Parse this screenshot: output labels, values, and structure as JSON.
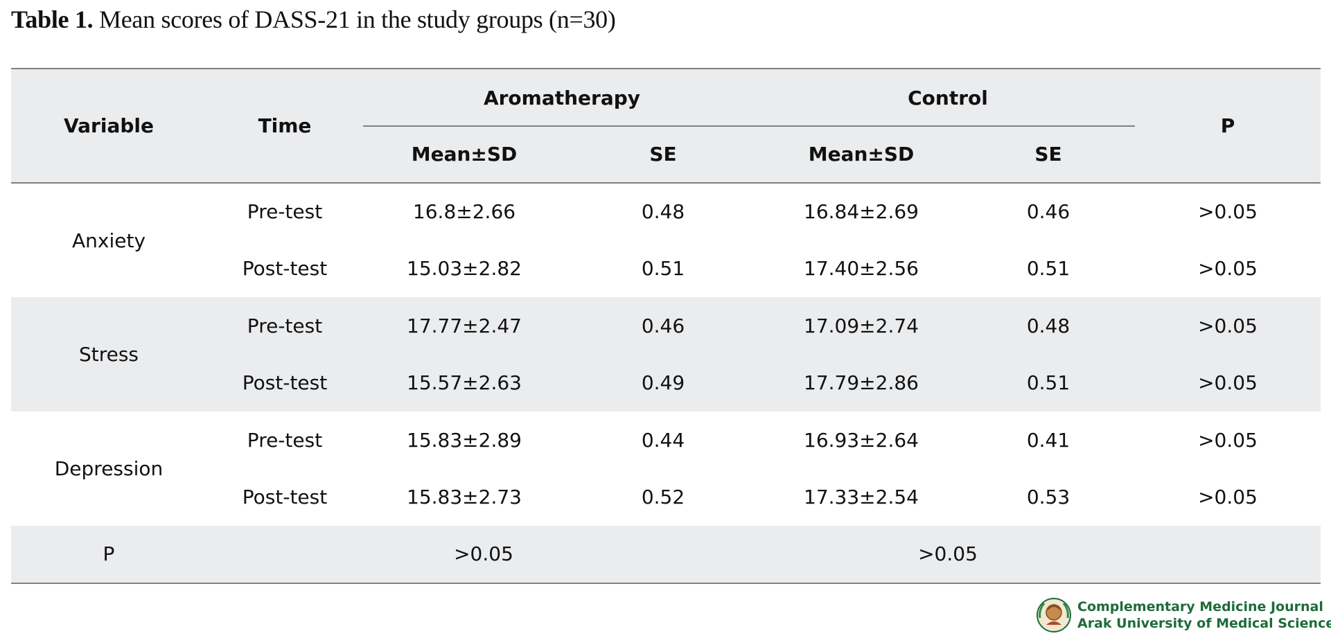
{
  "caption": {
    "label": "Table 1.",
    "text": "Mean scores of DASS-21 in the study groups (n=30)"
  },
  "table": {
    "headers": {
      "variable": "Variable",
      "time": "Time",
      "group1": "Aromatherapy",
      "group2": "Control",
      "p": "P",
      "mean_sd": "Mean±SD",
      "se": "SE"
    },
    "rows": [
      {
        "variable": "Anxiety",
        "time": "Pre-test",
        "g1_mean": "16.8±2.66",
        "g1_se": "0.48",
        "g2_mean": "16.84±2.69",
        "g2_se": "0.46",
        "p": ">0.05"
      },
      {
        "variable": "Anxiety",
        "time": "Post-test",
        "g1_mean": "15.03±2.82",
        "g1_se": "0.51",
        "g2_mean": "17.40±2.56",
        "g2_se": "0.51",
        "p": ">0.05"
      },
      {
        "variable": "Stress",
        "time": "Pre-test",
        "g1_mean": "17.77±2.47",
        "g1_se": "0.46",
        "g2_mean": "17.09±2.74",
        "g2_se": "0.48",
        "p": ">0.05"
      },
      {
        "variable": "Stress",
        "time": "Post-test",
        "g1_mean": "15.57±2.63",
        "g1_se": "0.49",
        "g2_mean": "17.79±2.86",
        "g2_se": "0.51",
        "p": ">0.05"
      },
      {
        "variable": "Depression",
        "time": "Pre-test",
        "g1_mean": "15.83±2.89",
        "g1_se": "0.44",
        "g2_mean": "16.93±2.64",
        "g2_se": "0.41",
        "p": ">0.05"
      },
      {
        "variable": "Depression",
        "time": "Post-test",
        "g1_mean": "15.83±2.73",
        "g1_se": "0.52",
        "g2_mean": "17.33±2.54",
        "g2_se": "0.53",
        "p": ">0.05"
      }
    ],
    "p_row": {
      "label": "P",
      "group1": ">0.05",
      "group2": ">0.05"
    }
  },
  "footer_logo": {
    "icon": "journal-seal-icon",
    "line1": "Complementary Medicine Journal",
    "line2": "Arak University of Medical Sciences"
  },
  "colors": {
    "header_shade": "#ebecee",
    "rule": "#808080",
    "logo_green": "#1e6b3a"
  }
}
